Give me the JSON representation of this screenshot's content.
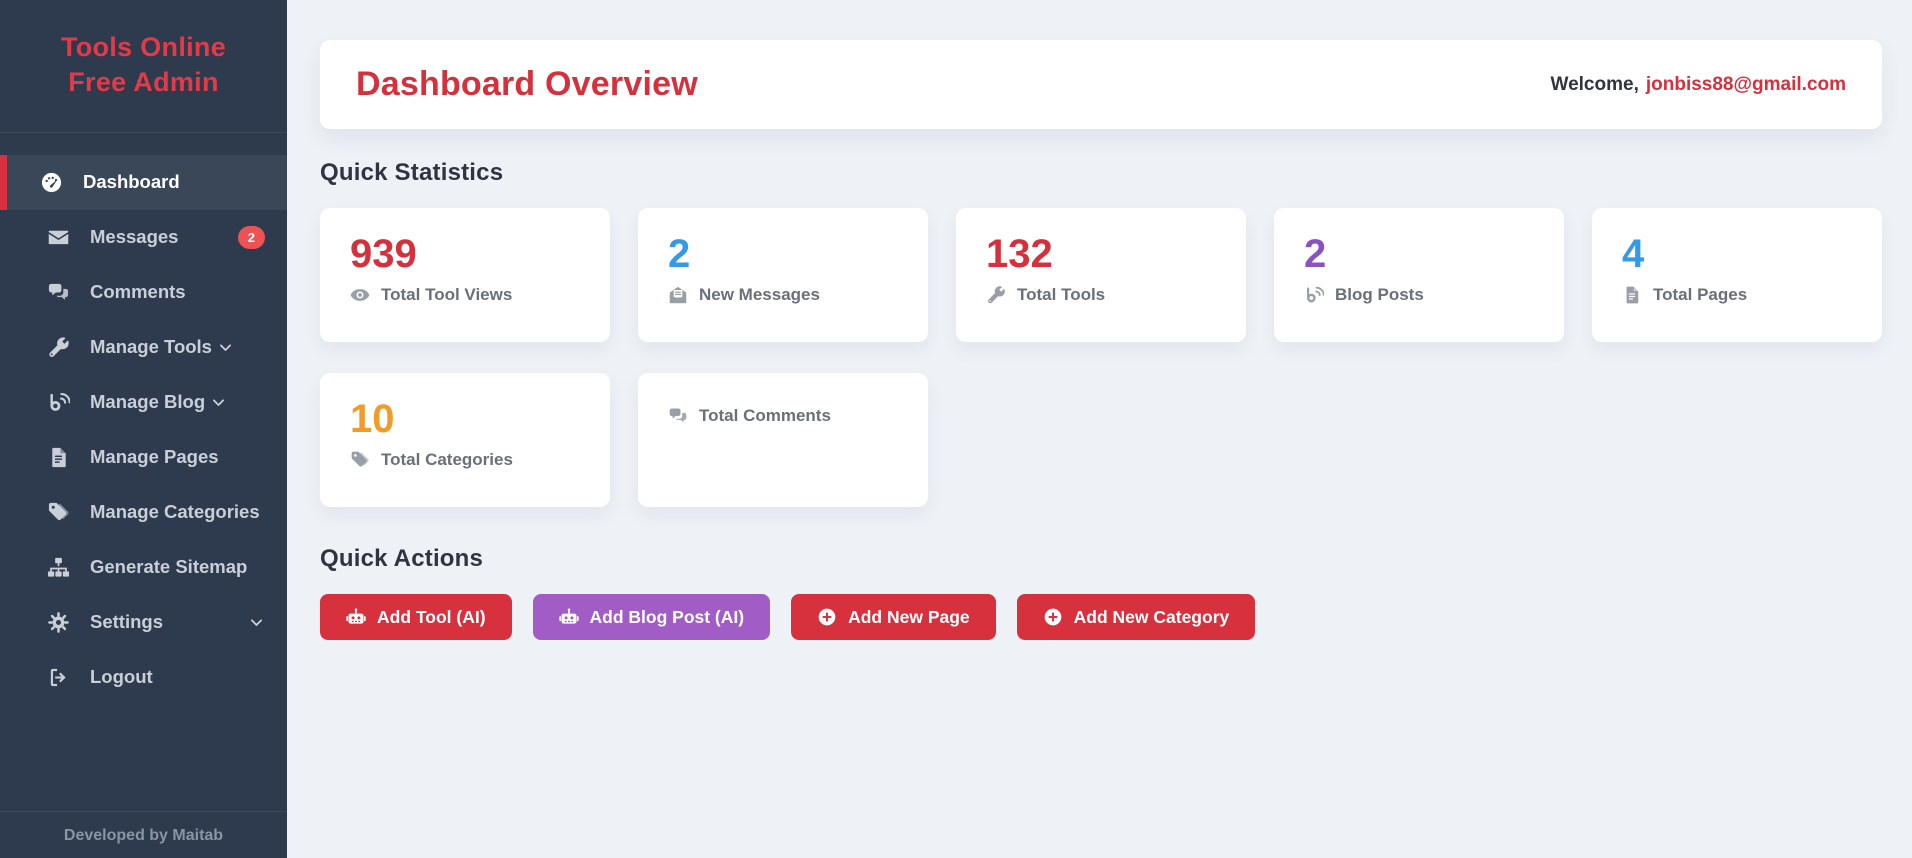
{
  "colors": {
    "sidebar_bg": "#2e3a4e",
    "sidebar_active_bg": "#3a4758",
    "brand_red": "#e23b47",
    "accent_red": "#d6303c",
    "badge_red": "#ee5253",
    "blue": "#329ae8",
    "purple_number": "#8d4fc4",
    "purple_button": "#a25cc6",
    "orange": "#f29b28",
    "page_bg": "#eef1f6"
  },
  "sidebar": {
    "brand": "Tools Online Free Admin",
    "footer": "Developed by Maitab",
    "items": [
      {
        "name": "dashboard",
        "label": "Dashboard",
        "icon": "dashboard-icon",
        "active": true
      },
      {
        "name": "messages",
        "label": "Messages",
        "icon": "envelope-icon",
        "badge": "2"
      },
      {
        "name": "comments",
        "label": "Comments",
        "icon": "comments-icon"
      },
      {
        "name": "manage-tools",
        "label": "Manage Tools",
        "icon": "wrench-icon",
        "chevron": "inline"
      },
      {
        "name": "manage-blog",
        "label": "Manage Blog",
        "icon": "blog-icon",
        "chevron": "inline"
      },
      {
        "name": "manage-pages",
        "label": "Manage Pages",
        "icon": "file-icon"
      },
      {
        "name": "manage-categories",
        "label": "Manage Categories",
        "icon": "tags-icon"
      },
      {
        "name": "generate-sitemap",
        "label": "Generate Sitemap",
        "icon": "sitemap-icon"
      },
      {
        "name": "settings",
        "label": "Settings",
        "icon": "gear-icon",
        "chevron": "right"
      },
      {
        "name": "logout",
        "label": "Logout",
        "icon": "logout-icon"
      }
    ]
  },
  "header": {
    "title": "Dashboard Overview",
    "welcome_prefix": "Welcome,",
    "email": "jonbiss88@gmail.com"
  },
  "stats": {
    "heading": "Quick Statistics",
    "cards": [
      {
        "name": "total-tool-views",
        "value": "939",
        "color": "#d6303c",
        "icon": "views-icon",
        "label": "Total Tool Views"
      },
      {
        "name": "new-messages",
        "value": "2",
        "color": "#329ae8",
        "icon": "envelope-open-icon",
        "label": "New Messages"
      },
      {
        "name": "total-tools",
        "value": "132",
        "color": "#d6303c",
        "icon": "wrench-icon",
        "label": "Total Tools"
      },
      {
        "name": "blog-posts",
        "value": "2",
        "color": "#8d4fc4",
        "icon": "blog-icon",
        "label": "Blog Posts"
      },
      {
        "name": "total-pages",
        "value": "4",
        "color": "#329ae8",
        "icon": "file-icon",
        "label": "Total Pages"
      },
      {
        "name": "total-categories",
        "value": "10",
        "color": "#f29b28",
        "icon": "tags-icon",
        "label": "Total Categories"
      },
      {
        "name": "total-comments",
        "value": "",
        "color": "",
        "icon": "comments-icon",
        "label": "Total Comments"
      }
    ]
  },
  "actions": {
    "heading": "Quick Actions",
    "buttons": [
      {
        "name": "add-tool-ai",
        "label": "Add Tool (AI)",
        "icon": "robot-icon",
        "color": "#d6313d"
      },
      {
        "name": "add-blog-post-ai",
        "label": "Add Blog Post (AI)",
        "icon": "robot-icon",
        "color": "#a25cc6"
      },
      {
        "name": "add-new-page",
        "label": "Add New Page",
        "icon": "plus-circle-icon",
        "color": "#d6313d"
      },
      {
        "name": "add-new-category",
        "label": "Add New Category",
        "icon": "plus-circle-icon",
        "color": "#d6313d"
      }
    ]
  }
}
